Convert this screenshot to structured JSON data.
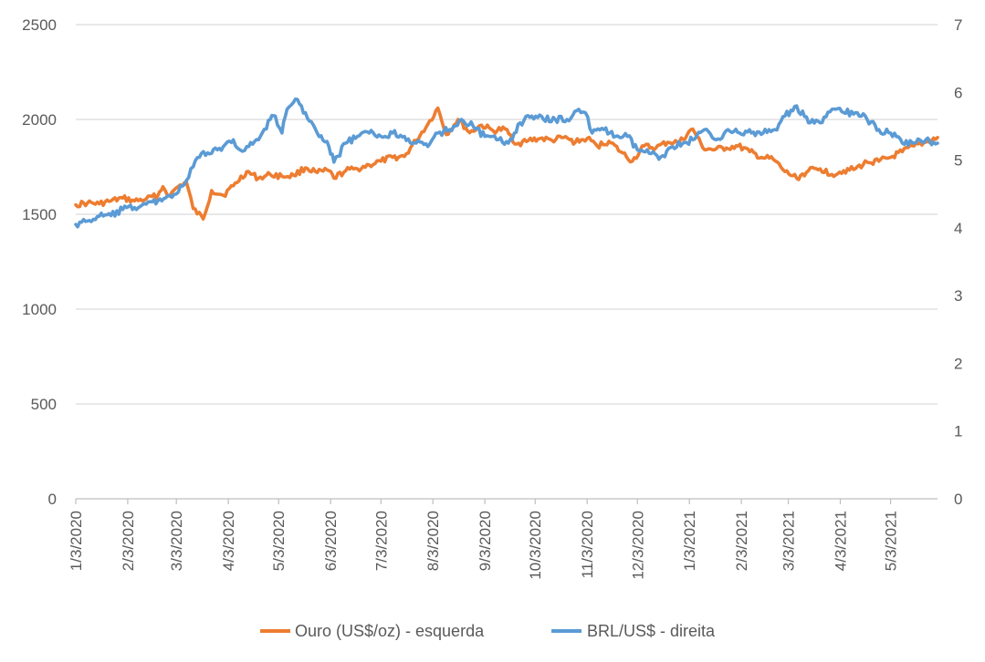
{
  "chart_data": {
    "type": "line",
    "title": "",
    "x_tick_labels": [
      "1/3/2020",
      "2/3/2020",
      "3/3/2020",
      "4/3/2020",
      "5/3/2020",
      "6/3/2020",
      "7/3/2020",
      "8/3/2020",
      "9/3/2020",
      "10/3/2020",
      "11/3/2020",
      "12/3/2020",
      "1/3/2021",
      "2/3/2021",
      "3/3/2021",
      "4/3/2021",
      "5/3/2021"
    ],
    "x_range": [
      "2020-01-03",
      "2021-05-31"
    ],
    "y_left": {
      "ticks": [
        0,
        500,
        1000,
        1500,
        2000,
        2500
      ],
      "tick_labels": [
        "0",
        "500",
        "1000",
        "1500",
        "2000",
        "2500"
      ],
      "range": [
        0,
        2500
      ]
    },
    "y_right": {
      "ticks": [
        0,
        1,
        2,
        3,
        4,
        5,
        6,
        7
      ],
      "tick_labels": [
        "0",
        "1",
        "2",
        "3",
        "4",
        "5",
        "6",
        "7"
      ],
      "range": [
        0,
        7
      ]
    },
    "grid": "horizontal",
    "legend_position": "bottom",
    "colors": {
      "gold": "#ED7D31",
      "brl": "#5B9BD5",
      "grid": "#D9D9D9",
      "axis": "#BFBFBF",
      "text": "#595959"
    },
    "series": [
      {
        "name": "Ouro (US$/oz) - esquerda",
        "axis": "left",
        "color": "#ED7D31",
        "points": [
          [
            "2020-01-03",
            1550
          ],
          [
            "2020-01-10",
            1560
          ],
          [
            "2020-01-17",
            1555
          ],
          [
            "2020-01-24",
            1570
          ],
          [
            "2020-01-31",
            1585
          ],
          [
            "2020-02-07",
            1570
          ],
          [
            "2020-02-14",
            1580
          ],
          [
            "2020-02-21",
            1600
          ],
          [
            "2020-02-24",
            1645
          ],
          [
            "2020-02-28",
            1595
          ],
          [
            "2020-03-03",
            1640
          ],
          [
            "2020-03-09",
            1670
          ],
          [
            "2020-03-13",
            1530
          ],
          [
            "2020-03-19",
            1475
          ],
          [
            "2020-03-24",
            1625
          ],
          [
            "2020-03-31",
            1600
          ],
          [
            "2020-04-06",
            1650
          ],
          [
            "2020-04-14",
            1725
          ],
          [
            "2020-04-21",
            1690
          ],
          [
            "2020-04-28",
            1710
          ],
          [
            "2020-05-05",
            1700
          ],
          [
            "2020-05-12",
            1705
          ],
          [
            "2020-05-19",
            1745
          ],
          [
            "2020-05-26",
            1720
          ],
          [
            "2020-06-02",
            1730
          ],
          [
            "2020-06-05",
            1690
          ],
          [
            "2020-06-12",
            1730
          ],
          [
            "2020-06-19",
            1740
          ],
          [
            "2020-06-26",
            1760
          ],
          [
            "2020-07-03",
            1780
          ],
          [
            "2020-07-10",
            1800
          ],
          [
            "2020-07-17",
            1805
          ],
          [
            "2020-07-24",
            1890
          ],
          [
            "2020-07-31",
            1975
          ],
          [
            "2020-08-06",
            2060
          ],
          [
            "2020-08-11",
            1920
          ],
          [
            "2020-08-18",
            2000
          ],
          [
            "2020-08-25",
            1930
          ],
          [
            "2020-09-01",
            1970
          ],
          [
            "2020-09-08",
            1940
          ],
          [
            "2020-09-15",
            1950
          ],
          [
            "2020-09-22",
            1870
          ],
          [
            "2020-09-29",
            1890
          ],
          [
            "2020-10-06",
            1900
          ],
          [
            "2020-10-13",
            1890
          ],
          [
            "2020-10-20",
            1905
          ],
          [
            "2020-10-27",
            1880
          ],
          [
            "2020-11-03",
            1900
          ],
          [
            "2020-11-09",
            1860
          ],
          [
            "2020-11-16",
            1885
          ],
          [
            "2020-11-23",
            1830
          ],
          [
            "2020-11-30",
            1780
          ],
          [
            "2020-12-07",
            1860
          ],
          [
            "2020-12-14",
            1850
          ],
          [
            "2020-12-21",
            1880
          ],
          [
            "2020-12-28",
            1880
          ],
          [
            "2021-01-05",
            1950
          ],
          [
            "2021-01-11",
            1850
          ],
          [
            "2021-01-18",
            1840
          ],
          [
            "2021-01-25",
            1850
          ],
          [
            "2021-02-01",
            1860
          ],
          [
            "2021-02-08",
            1830
          ],
          [
            "2021-02-15",
            1800
          ],
          [
            "2021-02-22",
            1790
          ],
          [
            "2021-03-01",
            1725
          ],
          [
            "2021-03-08",
            1690
          ],
          [
            "2021-03-15",
            1730
          ],
          [
            "2021-03-22",
            1740
          ],
          [
            "2021-03-29",
            1710
          ],
          [
            "2021-04-05",
            1730
          ],
          [
            "2021-04-12",
            1740
          ],
          [
            "2021-04-19",
            1775
          ],
          [
            "2021-04-26",
            1780
          ],
          [
            "2021-05-03",
            1800
          ],
          [
            "2021-05-10",
            1830
          ],
          [
            "2021-05-17",
            1860
          ],
          [
            "2021-05-24",
            1880
          ],
          [
            "2021-05-31",
            1905
          ]
        ]
      },
      {
        "name": "BRL/US$ - direita",
        "axis": "right",
        "color": "#5B9BD5",
        "points": [
          [
            "2020-01-03",
            4.05
          ],
          [
            "2020-01-10",
            4.1
          ],
          [
            "2020-01-17",
            4.17
          ],
          [
            "2020-01-24",
            4.18
          ],
          [
            "2020-01-31",
            4.27
          ],
          [
            "2020-02-07",
            4.3
          ],
          [
            "2020-02-14",
            4.35
          ],
          [
            "2020-02-21",
            4.4
          ],
          [
            "2020-02-28",
            4.48
          ],
          [
            "2020-03-03",
            4.5
          ],
          [
            "2020-03-09",
            4.7
          ],
          [
            "2020-03-13",
            4.9
          ],
          [
            "2020-03-18",
            5.1
          ],
          [
            "2020-03-24",
            5.1
          ],
          [
            "2020-03-31",
            5.2
          ],
          [
            "2020-04-06",
            5.3
          ],
          [
            "2020-04-10",
            5.15
          ],
          [
            "2020-04-14",
            5.2
          ],
          [
            "2020-04-21",
            5.3
          ],
          [
            "2020-04-28",
            5.6
          ],
          [
            "2020-05-01",
            5.65
          ],
          [
            "2020-05-05",
            5.4
          ],
          [
            "2020-05-08",
            5.75
          ],
          [
            "2020-05-13",
            5.9
          ],
          [
            "2020-05-19",
            5.7
          ],
          [
            "2020-05-26",
            5.4
          ],
          [
            "2020-06-02",
            5.2
          ],
          [
            "2020-06-05",
            4.97
          ],
          [
            "2020-06-12",
            5.25
          ],
          [
            "2020-06-19",
            5.35
          ],
          [
            "2020-06-26",
            5.4
          ],
          [
            "2020-07-03",
            5.35
          ],
          [
            "2020-07-10",
            5.4
          ],
          [
            "2020-07-17",
            5.35
          ],
          [
            "2020-07-24",
            5.25
          ],
          [
            "2020-07-31",
            5.2
          ],
          [
            "2020-08-06",
            5.4
          ],
          [
            "2020-08-13",
            5.45
          ],
          [
            "2020-08-20",
            5.6
          ],
          [
            "2020-08-27",
            5.5
          ],
          [
            "2020-09-03",
            5.35
          ],
          [
            "2020-09-10",
            5.3
          ],
          [
            "2020-09-17",
            5.25
          ],
          [
            "2020-09-24",
            5.55
          ],
          [
            "2020-10-01",
            5.65
          ],
          [
            "2020-10-08",
            5.6
          ],
          [
            "2020-10-15",
            5.6
          ],
          [
            "2020-10-22",
            5.6
          ],
          [
            "2020-10-29",
            5.75
          ],
          [
            "2020-11-02",
            5.7
          ],
          [
            "2020-11-06",
            5.4
          ],
          [
            "2020-11-13",
            5.45
          ],
          [
            "2020-11-20",
            5.35
          ],
          [
            "2020-11-27",
            5.35
          ],
          [
            "2020-12-03",
            5.15
          ],
          [
            "2020-12-10",
            5.1
          ],
          [
            "2020-12-17",
            5.05
          ],
          [
            "2020-12-24",
            5.2
          ],
          [
            "2021-01-05",
            5.3
          ],
          [
            "2021-01-12",
            5.45
          ],
          [
            "2021-01-19",
            5.3
          ],
          [
            "2021-01-26",
            5.45
          ],
          [
            "2021-02-02",
            5.4
          ],
          [
            "2021-02-09",
            5.4
          ],
          [
            "2021-02-16",
            5.4
          ],
          [
            "2021-02-23",
            5.45
          ],
          [
            "2021-03-01",
            5.65
          ],
          [
            "2021-03-08",
            5.8
          ],
          [
            "2021-03-15",
            5.55
          ],
          [
            "2021-03-22",
            5.55
          ],
          [
            "2021-03-29",
            5.75
          ],
          [
            "2021-04-05",
            5.7
          ],
          [
            "2021-04-12",
            5.7
          ],
          [
            "2021-04-19",
            5.6
          ],
          [
            "2021-04-26",
            5.45
          ],
          [
            "2021-05-03",
            5.4
          ],
          [
            "2021-05-10",
            5.25
          ],
          [
            "2021-05-17",
            5.25
          ],
          [
            "2021-05-24",
            5.3
          ],
          [
            "2021-05-31",
            5.25
          ]
        ]
      }
    ]
  }
}
